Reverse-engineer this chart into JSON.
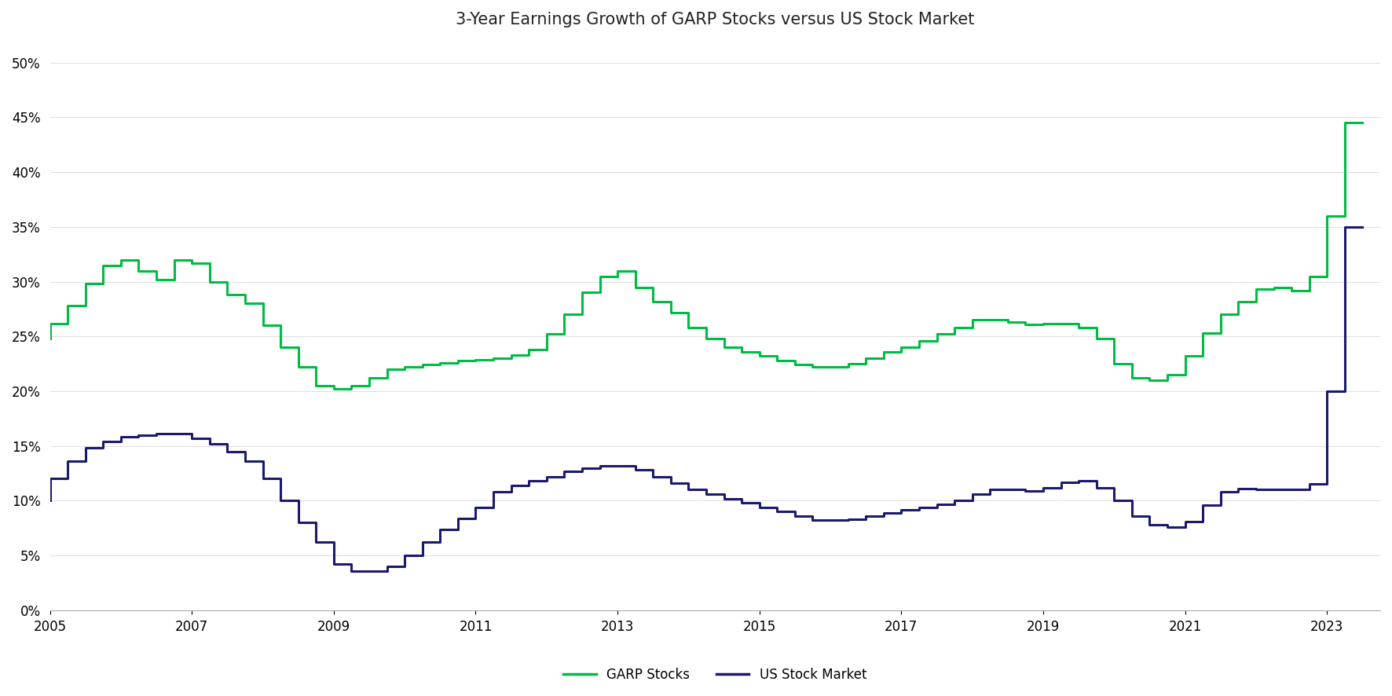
{
  "title": "3-Year Earnings Growth of GARP Stocks versus US Stock Market",
  "title_fontsize": 15,
  "background_color": "#ffffff",
  "garp_color": "#00BB44",
  "market_color": "#1a1a6e",
  "line_width": 2.2,
  "ylim": [
    0,
    0.52
  ],
  "yticks": [
    0.0,
    0.05,
    0.1,
    0.15,
    0.2,
    0.25,
    0.3,
    0.35,
    0.4,
    0.45,
    0.5
  ],
  "ytick_labels": [
    "0%",
    "5%",
    "10%",
    "15%",
    "20%",
    "25%",
    "30%",
    "35%",
    "40%",
    "45%",
    "50%"
  ],
  "xtick_labels": [
    "2005",
    "2007",
    "2009",
    "2011",
    "2013",
    "2015",
    "2017",
    "2019",
    "2021",
    "2023"
  ],
  "legend_labels": [
    "GARP Stocks",
    "US Stock Market"
  ],
  "legend_colors": [
    "#00BB44",
    "#1a1a6e"
  ],
  "garp_x": [
    2005.0,
    2005.25,
    2005.5,
    2005.75,
    2006.0,
    2006.25,
    2006.5,
    2006.75,
    2007.0,
    2007.25,
    2007.5,
    2007.75,
    2008.0,
    2008.25,
    2008.5,
    2008.75,
    2009.0,
    2009.25,
    2009.5,
    2009.75,
    2010.0,
    2010.25,
    2010.5,
    2010.75,
    2011.0,
    2011.25,
    2011.5,
    2011.75,
    2012.0,
    2012.25,
    2012.5,
    2012.75,
    2013.0,
    2013.25,
    2013.5,
    2013.75,
    2014.0,
    2014.25,
    2014.5,
    2014.75,
    2015.0,
    2015.25,
    2015.5,
    2015.75,
    2016.0,
    2016.25,
    2016.5,
    2016.75,
    2017.0,
    2017.25,
    2017.5,
    2017.75,
    2018.0,
    2018.25,
    2018.5,
    2018.75,
    2019.0,
    2019.25,
    2019.5,
    2019.75,
    2020.0,
    2020.25,
    2020.5,
    2020.75,
    2021.0,
    2021.25,
    2021.5,
    2021.75,
    2022.0,
    2022.25,
    2022.5,
    2022.75,
    2023.0,
    2023.25,
    2023.5
  ],
  "garp_y": [
    0.248,
    0.262,
    0.278,
    0.298,
    0.315,
    0.32,
    0.31,
    0.302,
    0.32,
    0.317,
    0.3,
    0.288,
    0.28,
    0.26,
    0.24,
    0.222,
    0.205,
    0.202,
    0.205,
    0.212,
    0.22,
    0.222,
    0.224,
    0.226,
    0.228,
    0.229,
    0.23,
    0.233,
    0.238,
    0.252,
    0.27,
    0.29,
    0.305,
    0.31,
    0.295,
    0.282,
    0.272,
    0.258,
    0.248,
    0.24,
    0.236,
    0.232,
    0.228,
    0.224,
    0.222,
    0.222,
    0.225,
    0.23,
    0.236,
    0.24,
    0.246,
    0.252,
    0.258,
    0.265,
    0.265,
    0.263,
    0.261,
    0.262,
    0.262,
    0.258,
    0.248,
    0.225,
    0.212,
    0.21,
    0.215,
    0.232,
    0.253,
    0.27,
    0.282,
    0.293,
    0.295,
    0.292,
    0.305,
    0.36,
    0.445
  ],
  "market_x": [
    2005.0,
    2005.25,
    2005.5,
    2005.75,
    2006.0,
    2006.25,
    2006.5,
    2006.75,
    2007.0,
    2007.25,
    2007.5,
    2007.75,
    2008.0,
    2008.25,
    2008.5,
    2008.75,
    2009.0,
    2009.25,
    2009.5,
    2009.75,
    2010.0,
    2010.25,
    2010.5,
    2010.75,
    2011.0,
    2011.25,
    2011.5,
    2011.75,
    2012.0,
    2012.25,
    2012.5,
    2012.75,
    2013.0,
    2013.25,
    2013.5,
    2013.75,
    2014.0,
    2014.25,
    2014.5,
    2014.75,
    2015.0,
    2015.25,
    2015.5,
    2015.75,
    2016.0,
    2016.25,
    2016.5,
    2016.75,
    2017.0,
    2017.25,
    2017.5,
    2017.75,
    2018.0,
    2018.25,
    2018.5,
    2018.75,
    2019.0,
    2019.25,
    2019.5,
    2019.75,
    2020.0,
    2020.25,
    2020.5,
    2020.75,
    2021.0,
    2021.25,
    2021.5,
    2021.75,
    2022.0,
    2022.25,
    2022.5,
    2022.75,
    2023.0,
    2023.25,
    2023.5
  ],
  "market_y": [
    0.1,
    0.12,
    0.136,
    0.148,
    0.154,
    0.158,
    0.16,
    0.161,
    0.161,
    0.157,
    0.152,
    0.145,
    0.136,
    0.12,
    0.1,
    0.08,
    0.062,
    0.042,
    0.036,
    0.036,
    0.04,
    0.05,
    0.062,
    0.074,
    0.084,
    0.094,
    0.108,
    0.114,
    0.118,
    0.122,
    0.127,
    0.13,
    0.132,
    0.132,
    0.128,
    0.122,
    0.116,
    0.11,
    0.106,
    0.102,
    0.098,
    0.094,
    0.09,
    0.086,
    0.082,
    0.082,
    0.083,
    0.086,
    0.089,
    0.092,
    0.094,
    0.097,
    0.1,
    0.106,
    0.11,
    0.11,
    0.109,
    0.112,
    0.117,
    0.118,
    0.112,
    0.1,
    0.086,
    0.078,
    0.076,
    0.081,
    0.096,
    0.108,
    0.111,
    0.11,
    0.11,
    0.11,
    0.115,
    0.2,
    0.35
  ]
}
